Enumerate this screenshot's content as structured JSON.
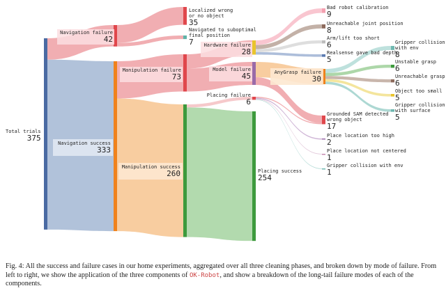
{
  "nodes": [
    {
      "label": "Total trials",
      "value": 375,
      "color": "#4a6aa3"
    },
    {
      "label": "Navigation failure",
      "value": 42,
      "color": "#e0474c"
    },
    {
      "label": "Navigation success",
      "value": 333,
      "color": "#f0821c"
    },
    {
      "label": "Localized wrong or no object",
      "value": 35,
      "color": "#e0474c"
    },
    {
      "label": "Navigated to suboptimal final position",
      "value": 7,
      "color": "#5fb3a8"
    },
    {
      "label": "Manipulation failure",
      "value": 73,
      "color": "#e0474c"
    },
    {
      "label": "Manipulation success",
      "value": 260,
      "color": "#3d9a3d"
    },
    {
      "label": "Hardware failure",
      "value": 28,
      "color": "#e9c42c"
    },
    {
      "label": "Model failure",
      "value": 45,
      "color": "#9a6aa8"
    },
    {
      "label": "Placing failure",
      "value": 6,
      "color": "#e0474c"
    },
    {
      "label": "Placing success",
      "value": 254,
      "color": "#3d9a3d"
    },
    {
      "label": "Bad robot calibration",
      "value": 9,
      "color": "#f4a0b0"
    },
    {
      "label": "Unreachable joint position",
      "value": 8,
      "color": "#8c6a5c"
    },
    {
      "label": "Arm/lift too short",
      "value": 6,
      "color": "#bdbdbd"
    },
    {
      "label": "Realsense gave bad depth",
      "value": 5,
      "color": "#5a7ab0"
    },
    {
      "label": "AnyGrasp failure",
      "value": 30,
      "color": "#f0821c"
    },
    {
      "label": "Grounded SAM detected wrong object",
      "value": 17,
      "color": "#e0474c"
    },
    {
      "label": "Place location too high",
      "value": 2,
      "color": "#9a6aa8"
    },
    {
      "label": "Place location not centered",
      "value": 1,
      "color": "#c58ab0"
    },
    {
      "label": "Gripper collision with env",
      "value": 1,
      "color": "#6fb8b0"
    },
    {
      "label": "Gripper collision with env",
      "value": 8,
      "color": "#6fb8b0"
    },
    {
      "label": "Unstable grasp",
      "value": 6,
      "color": "#3d9a3d"
    },
    {
      "label": "Unreachable grasp",
      "value": 6,
      "color": "#8c6a5c"
    },
    {
      "label": "Object too small",
      "value": 5,
      "color": "#e9c42c"
    },
    {
      "label": "Gripper collision with surface",
      "value": 5,
      "color": "#6fb8b0"
    }
  ],
  "links": [
    {
      "source": 0,
      "target": 1,
      "value": 42,
      "color": "#eea0a4"
    },
    {
      "source": 0,
      "target": 2,
      "value": 333,
      "color": "#a3b7d3"
    },
    {
      "source": 1,
      "target": 3,
      "value": 35,
      "color": "#eea0a4"
    },
    {
      "source": 1,
      "target": 4,
      "value": 7,
      "color": "#eea0a4"
    },
    {
      "source": 2,
      "target": 5,
      "value": 73,
      "color": "#eea0a4"
    },
    {
      "source": 2,
      "target": 6,
      "value": 260,
      "color": "#f7c48f"
    },
    {
      "source": 5,
      "target": 7,
      "value": 28,
      "color": "#eea0a4"
    },
    {
      "source": 5,
      "target": 8,
      "value": 45,
      "color": "#eea0a4"
    },
    {
      "source": 6,
      "target": 9,
      "value": 6,
      "color": "#f5c0c2"
    },
    {
      "source": 6,
      "target": 10,
      "value": 254,
      "color": "#a4d3a0"
    },
    {
      "source": 7,
      "target": 11,
      "value": 9,
      "color": "#f8bcc8"
    },
    {
      "source": 7,
      "target": 12,
      "value": 8,
      "color": "#b9a398"
    },
    {
      "source": 7,
      "target": 13,
      "value": 6,
      "color": "#d8d8d8"
    },
    {
      "source": 7,
      "target": 14,
      "value": 5,
      "color": "#9fb3d3"
    },
    {
      "source": 8,
      "target": 15,
      "value": 30,
      "color": "#f7c48f"
    },
    {
      "source": 8,
      "target": 16,
      "value": 15,
      "color": "#eea0a4"
    },
    {
      "source": 9,
      "target": 16,
      "value": 2,
      "color": "#eea0a4"
    },
    {
      "source": 9,
      "target": 17,
      "value": 2,
      "color": "#c7a8cf"
    },
    {
      "source": 9,
      "target": 18,
      "value": 1,
      "color": "#dcbcd2"
    },
    {
      "source": 9,
      "target": 19,
      "value": 1,
      "color": "#a8d6d0"
    },
    {
      "source": 15,
      "target": 20,
      "value": 8,
      "color": "#b3dcd7"
    },
    {
      "source": 15,
      "target": 21,
      "value": 6,
      "color": "#9fd09a"
    },
    {
      "source": 15,
      "target": 22,
      "value": 6,
      "color": "#bfa99e"
    },
    {
      "source": 15,
      "target": 23,
      "value": 5,
      "color": "#f2e08c"
    },
    {
      "source": 15,
      "target": 24,
      "value": 5,
      "color": "#9fd1cb"
    }
  ],
  "caption": {
    "prefix": "Fig. 4: All the success and failure cases in our home experiments, aggregated over all three cleaning phases, and broken down by mode of failure. From left to right, we show the application of the three components of ",
    "code": "OK-Robot",
    "suffix": ", and show a breakdown of the long-tail failure modes of each of the components."
  }
}
